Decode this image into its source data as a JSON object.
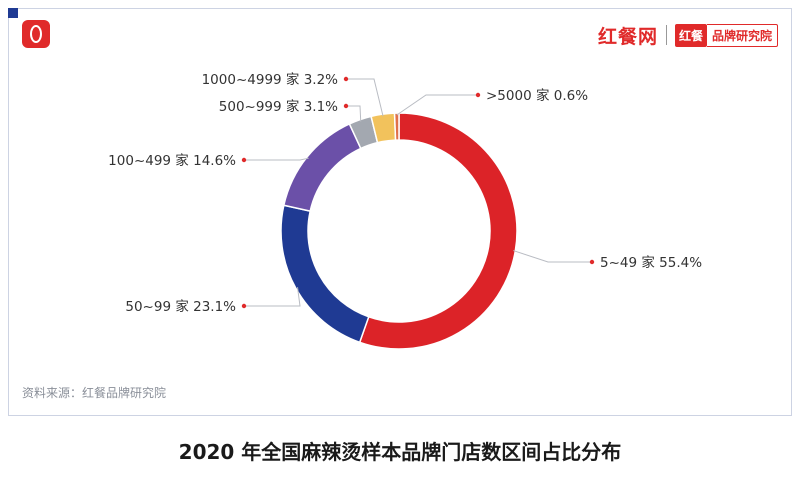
{
  "header": {
    "brand_name": "红餐网",
    "badge_mark": "红餐",
    "badge_text": "品牌研究院"
  },
  "source_note": "资料来源：红餐品牌研究院",
  "colors": {
    "accent": "#e02a2a",
    "frame": "#cdd3e3"
  },
  "chart_data": {
    "type": "pie",
    "style": "donut",
    "title": "2020 年全国麻辣烫样本品牌门店数区间占比分布",
    "unit": "%",
    "categories": [
      "5~49 家",
      "50~99 家",
      "100~499 家",
      "500~999 家",
      "1000~4999 家",
      ">5000 家"
    ],
    "values": [
      55.4,
      23.1,
      14.6,
      3.1,
      3.2,
      0.6
    ],
    "labels": [
      "5~49 家  55.4%",
      "50~99 家  23.1%",
      "100~499 家  14.6%",
      "500~999 家  3.1%",
      "1000~4999 家  3.2%",
      ">5000 家  0.6%"
    ],
    "colors": [
      "#dc2328",
      "#1f3a93",
      "#6b50a8",
      "#a3a8b0",
      "#f2c25c",
      "#e0704a"
    ],
    "legend": "none",
    "grid": false
  }
}
